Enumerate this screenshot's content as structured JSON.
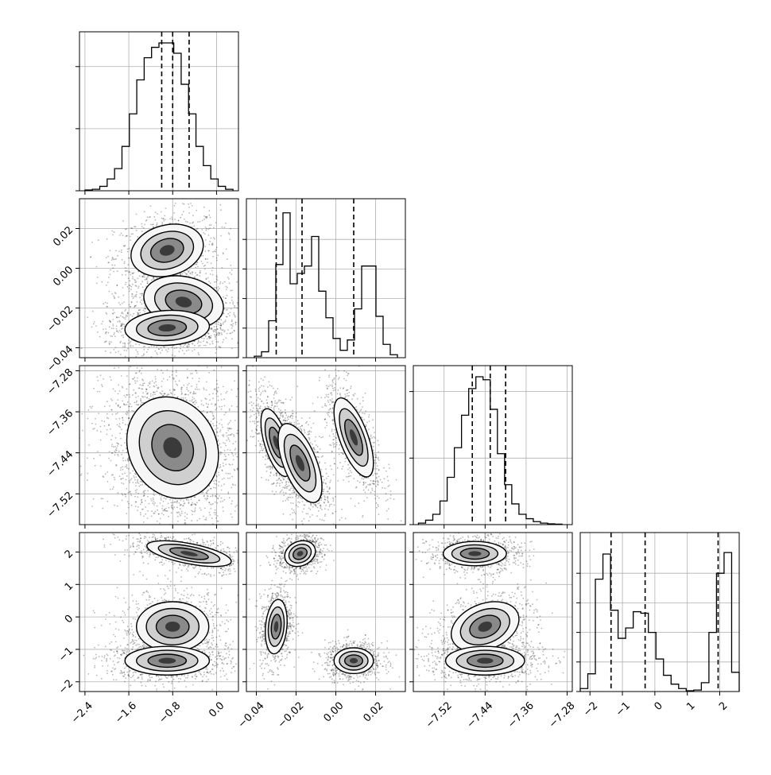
{
  "chart_data": {
    "type": "corner",
    "grid": true,
    "dashed_quantiles": true,
    "variables": [
      {
        "index": 0,
        "name": "",
        "range": [
          -2.5,
          0.4
        ],
        "ticks": [
          -2.4,
          -1.6,
          -0.8,
          0.0
        ],
        "tick_labels": [
          "−2.4",
          "−1.6",
          "−0.8",
          "0.0"
        ],
        "quantiles": [
          -1.0,
          -0.8,
          -0.5
        ],
        "histogram": {
          "edges": [
            -2.4,
            0.3
          ],
          "counts": [
            0.005,
            0.01,
            0.03,
            0.08,
            0.15,
            0.3,
            0.52,
            0.75,
            0.9,
            0.97,
            1.0,
            1.0,
            0.93,
            0.72,
            0.52,
            0.3,
            0.17,
            0.08,
            0.03,
            0.01
          ]
        },
        "hist_yticks": [
          0.0,
          0.42,
          0.84
        ]
      },
      {
        "index": 1,
        "name": "",
        "range": [
          -0.045,
          0.035
        ],
        "ticks": [
          -0.04,
          -0.02,
          0.0,
          0.02
        ],
        "tick_labels": [
          "−0.04",
          "−0.02",
          "0.00",
          "0.02"
        ],
        "quantiles": [
          -0.03,
          -0.017,
          0.009
        ],
        "histogram": {
          "edges": [
            -0.041,
            0.031
          ],
          "counts": [
            0.01,
            0.04,
            0.25,
            0.63,
            0.98,
            0.5,
            0.57,
            0.62,
            0.82,
            0.45,
            0.27,
            0.13,
            0.05,
            0.12,
            0.33,
            0.62,
            0.62,
            0.28,
            0.09,
            0.02
          ]
        },
        "hist_yticks": [
          0.0,
          0.2,
          0.4,
          0.6,
          0.8
        ]
      },
      {
        "index": 2,
        "name": "",
        "range": [
          -7.58,
          -7.27
        ],
        "ticks": [
          -7.52,
          -7.44,
          -7.36,
          -7.28
        ],
        "tick_labels": [
          "−7.52",
          "−7.44",
          "−7.36",
          "−7.28"
        ],
        "quantiles": [
          -7.465,
          -7.43,
          -7.4
        ],
        "histogram": {
          "edges": [
            -7.57,
            -7.29
          ],
          "counts": [
            0.01,
            0.03,
            0.07,
            0.16,
            0.32,
            0.52,
            0.74,
            0.92,
            1.0,
            0.98,
            0.78,
            0.48,
            0.27,
            0.14,
            0.07,
            0.04,
            0.02,
            0.01,
            0.005,
            0.003
          ]
        },
        "hist_yticks": [
          0.0,
          0.45,
          0.9
        ]
      },
      {
        "index": 3,
        "name": "",
        "range": [
          -2.3,
          2.6
        ],
        "ticks": [
          -2,
          -1,
          0,
          1,
          2
        ],
        "tick_labels": [
          "−2",
          "−1",
          "0",
          "1",
          "2"
        ],
        "quantiles": [
          -1.35,
          -0.3,
          1.95
        ],
        "histogram": {
          "edges": [
            -2.3,
            2.6
          ],
          "counts": [
            0.02,
            0.12,
            0.76,
            0.93,
            0.55,
            0.36,
            0.43,
            0.54,
            0.53,
            0.4,
            0.22,
            0.11,
            0.05,
            0.02,
            0.005,
            0.01,
            0.06,
            0.4,
            0.8,
            0.94,
            0.13
          ]
        },
        "hist_yticks": [
          0.0,
          0.2,
          0.4,
          0.6,
          0.8
        ]
      }
    ],
    "pairs": [
      {
        "x": 0,
        "y": 1,
        "clusters": [
          {
            "cx": -0.9,
            "cy": 0.009,
            "sx": 0.3,
            "sy": 0.006,
            "rho": 0.2,
            "w": 1.0
          },
          {
            "cx": -0.6,
            "cy": -0.017,
            "sx": 0.33,
            "sy": 0.006,
            "rho": -0.2,
            "w": 1.0
          },
          {
            "cx": -0.9,
            "cy": -0.03,
            "sx": 0.35,
            "sy": 0.004,
            "rho": 0.1,
            "w": 1.2
          }
        ]
      },
      {
        "x": 0,
        "y": 2,
        "clusters": [
          {
            "cx": -0.8,
            "cy": -7.43,
            "sx": 0.38,
            "sy": 0.045,
            "rho": -0.15,
            "w": 3.0
          }
        ]
      },
      {
        "x": 1,
        "y": 2,
        "clusters": [
          {
            "cx": -0.03,
            "cy": -7.42,
            "sx": 0.0035,
            "sy": 0.03,
            "rho": -0.6,
            "w": 1.0
          },
          {
            "cx": -0.018,
            "cy": -7.46,
            "sx": 0.005,
            "sy": 0.035,
            "rho": -0.6,
            "w": 1.0
          },
          {
            "cx": 0.009,
            "cy": -7.41,
            "sx": 0.0045,
            "sy": 0.035,
            "rho": -0.65,
            "w": 1.0
          }
        ]
      },
      {
        "x": 0,
        "y": 3,
        "clusters": [
          {
            "cx": -0.5,
            "cy": 1.95,
            "sx": 0.35,
            "sy": 0.18,
            "rho": -0.6,
            "w": 1.0
          },
          {
            "cx": -0.8,
            "cy": -0.3,
            "sx": 0.3,
            "sy": 0.35,
            "rho": 0.0,
            "w": 1.0
          },
          {
            "cx": -0.9,
            "cy": -1.35,
            "sx": 0.35,
            "sy": 0.2,
            "rho": 0.0,
            "w": 1.1
          }
        ]
      },
      {
        "x": 1,
        "y": 3,
        "clusters": [
          {
            "cx": -0.018,
            "cy": 1.95,
            "sx": 0.0035,
            "sy": 0.18,
            "rho": 0.2,
            "w": 1.0
          },
          {
            "cx": -0.03,
            "cy": -0.3,
            "sx": 0.0025,
            "sy": 0.38,
            "rho": 0.2,
            "w": 1.0
          },
          {
            "cx": 0.009,
            "cy": -1.35,
            "sx": 0.0045,
            "sy": 0.18,
            "rho": 0.0,
            "w": 1.0
          }
        ]
      },
      {
        "x": 2,
        "y": 3,
        "clusters": [
          {
            "cx": -7.46,
            "cy": 1.95,
            "sx": 0.028,
            "sy": 0.17,
            "rho": 0.0,
            "w": 1.0
          },
          {
            "cx": -7.44,
            "cy": -0.3,
            "sx": 0.03,
            "sy": 0.35,
            "rho": 0.3,
            "w": 1.0
          },
          {
            "cx": -7.44,
            "cy": -1.35,
            "sx": 0.035,
            "sy": 0.2,
            "rho": 0.0,
            "w": 1.1
          }
        ]
      }
    ]
  }
}
